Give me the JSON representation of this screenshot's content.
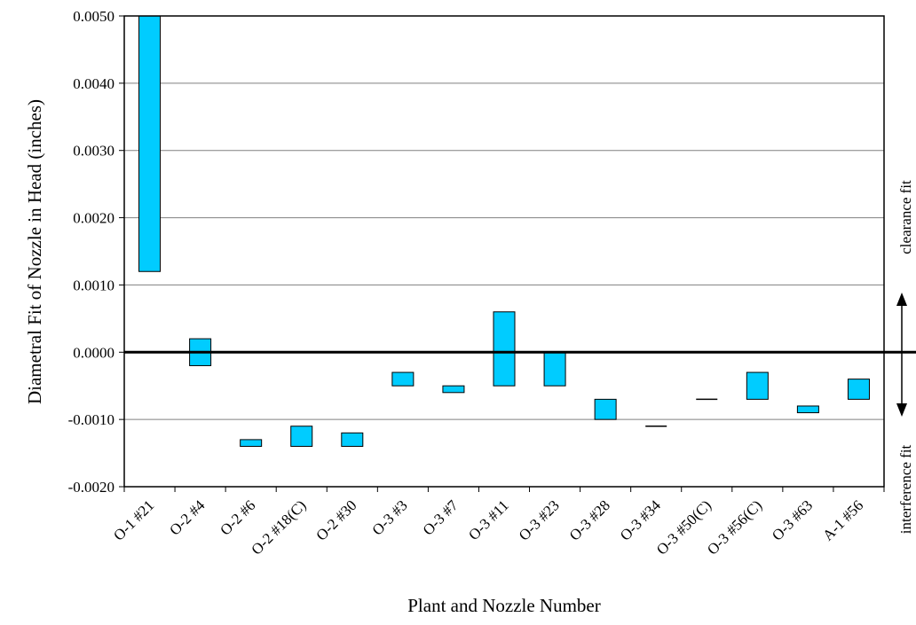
{
  "chart_data": {
    "type": "bar",
    "variant": "floating-range",
    "xlabel": "Plant and Nozzle Number",
    "ylabel": "Diametral Fit of Nozzle in Head (inches)",
    "ylim": [
      -0.002,
      0.005
    ],
    "yticks": [
      {
        "value": 0.005,
        "label": "0.0050"
      },
      {
        "value": 0.004,
        "label": "0.0040"
      },
      {
        "value": 0.003,
        "label": "0.0030"
      },
      {
        "value": 0.002,
        "label": "0.0020"
      },
      {
        "value": 0.001,
        "label": "0.0010"
      },
      {
        "value": 0.0,
        "label": "0.0000"
      },
      {
        "value": -0.001,
        "label": "-0.0010"
      },
      {
        "value": -0.002,
        "label": "-0.0020"
      }
    ],
    "grid": "horizontal",
    "bar_color": "#00ccff",
    "categories": [
      "O-1 #21",
      "O-2 #4",
      "O-2 #6",
      "O-2 #18(C)",
      "O-2 #30",
      "O-3 #3",
      "O-3 #7",
      "O-3 #11",
      "O-3 #23",
      "O-3 #28",
      "O-3 #34",
      "O-3 #50(C)",
      "O-3 #56(C)",
      "O-3 #63",
      "A-1 #56"
    ],
    "low": [
      0.0012,
      -0.0002,
      -0.0014,
      -0.0014,
      -0.0014,
      -0.0005,
      -0.0006,
      -0.0005,
      -0.0005,
      -0.001,
      -0.0011,
      -0.0007,
      -0.0007,
      -0.0009,
      -0.0007
    ],
    "high": [
      0.005,
      0.0002,
      -0.0013,
      -0.0011,
      -0.0012,
      -0.0003,
      -0.0005,
      0.0006,
      0.0,
      -0.0007,
      -0.0011,
      -0.0007,
      -0.0003,
      -0.0008,
      -0.0004
    ],
    "annotations": {
      "upper": "clearance fit",
      "lower": "interference fit"
    }
  }
}
